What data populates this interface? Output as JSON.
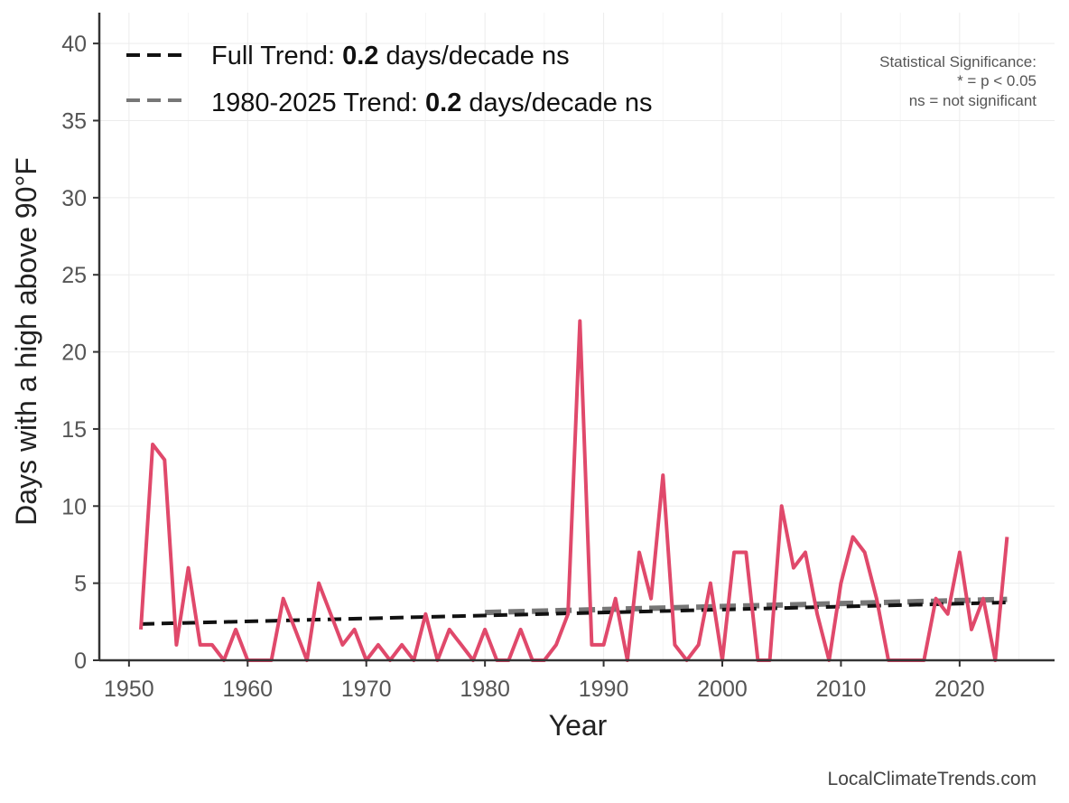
{
  "chart_data": {
    "type": "line",
    "title": "",
    "xlabel": "Year",
    "ylabel": "Days with a high above 90°F",
    "xlim": [
      1947.5,
      2028
    ],
    "ylim": [
      0,
      42
    ],
    "xticks": [
      1950,
      1960,
      1970,
      1980,
      1990,
      2000,
      2010,
      2020
    ],
    "yticks": [
      0,
      5,
      10,
      15,
      20,
      25,
      30,
      35,
      40
    ],
    "grid": true,
    "legend_position": "top-left",
    "x": [
      1951,
      1952,
      1953,
      1954,
      1955,
      1956,
      1957,
      1958,
      1959,
      1960,
      1961,
      1962,
      1963,
      1964,
      1965,
      1966,
      1967,
      1968,
      1969,
      1970,
      1971,
      1972,
      1973,
      1974,
      1975,
      1976,
      1977,
      1978,
      1979,
      1980,
      1981,
      1982,
      1983,
      1984,
      1985,
      1986,
      1987,
      1988,
      1989,
      1990,
      1991,
      1992,
      1993,
      1994,
      1995,
      1996,
      1997,
      1998,
      1999,
      2000,
      2001,
      2002,
      2003,
      2004,
      2005,
      2006,
      2007,
      2008,
      2009,
      2010,
      2011,
      2012,
      2013,
      2014,
      2015,
      2016,
      2017,
      2018,
      2019,
      2020,
      2021,
      2022,
      2023,
      2024
    ],
    "series": [
      {
        "name": "Days above 90°F",
        "color": "#e0496b",
        "values": [
          2,
          14,
          13,
          1,
          6,
          1,
          1,
          0,
          2,
          0,
          0,
          0,
          4,
          2,
          0,
          5,
          3,
          1,
          2,
          0,
          1,
          0,
          1,
          0,
          3,
          0,
          2,
          1,
          0,
          2,
          0,
          0,
          2,
          0,
          0,
          1,
          3,
          22,
          1,
          1,
          4,
          0,
          7,
          4,
          12,
          1,
          0,
          1,
          5,
          0,
          7,
          7,
          0,
          0,
          10,
          6,
          7,
          3,
          0,
          5,
          8,
          7,
          4,
          0,
          0,
          0,
          0,
          4,
          3,
          7,
          2,
          4,
          0,
          8
        ]
      }
    ],
    "trends": [
      {
        "name": "Full Trend",
        "color": "#111111",
        "x": [
          1951,
          2024
        ],
        "y": [
          2.35,
          3.75
        ]
      },
      {
        "name": "1980-2025 Trend",
        "color": "#777777",
        "x": [
          1980,
          2024
        ],
        "y": [
          3.1,
          3.95
        ]
      }
    ],
    "legend": [
      {
        "prefix": "Full Trend: ",
        "value": "0.2",
        "suffix": " days/decade ns",
        "color": "#111111"
      },
      {
        "prefix": "1980-2025 Trend: ",
        "value": "0.2",
        "suffix": " days/decade ns",
        "color": "#777777"
      }
    ],
    "annotation": {
      "title": "Statistical Significance:",
      "line1": "* = p < 0.05",
      "line2": "ns = not significant"
    },
    "credit": "LocalClimateTrends.com"
  }
}
